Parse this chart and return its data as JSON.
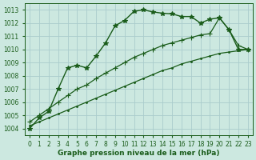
{
  "background_color": "#cce8e0",
  "plot_bg_color": "#cce8e0",
  "grid_color": "#aacccc",
  "line_color": "#1a5c1a",
  "xlabel": "Graphe pression niveau de la mer (hPa)",
  "xlim": [
    -0.5,
    23.5
  ],
  "ylim": [
    1003.5,
    1013.5
  ],
  "yticks": [
    1004,
    1005,
    1006,
    1007,
    1008,
    1009,
    1010,
    1011,
    1012,
    1013
  ],
  "xticks": [
    0,
    1,
    2,
    3,
    4,
    5,
    6,
    7,
    8,
    9,
    10,
    11,
    12,
    13,
    14,
    15,
    16,
    17,
    18,
    19,
    20,
    21,
    22,
    23
  ],
  "series": [
    {
      "x": [
        0,
        1,
        2,
        3,
        4,
        5,
        6,
        7,
        8,
        9,
        10,
        11,
        12,
        13,
        14,
        15,
        16,
        17,
        18,
        19,
        20,
        21,
        22,
        23
      ],
      "y": [
        1004.0,
        1004.8,
        1005.3,
        1007.0,
        1008.6,
        1008.8,
        1008.6,
        1009.5,
        1010.5,
        1011.8,
        1012.2,
        1012.9,
        1013.0,
        1012.85,
        1012.75,
        1012.7,
        1012.5,
        1012.5,
        1012.0,
        1012.3,
        1012.4,
        1011.5,
        1010.0,
        1010.0
      ],
      "marker": "*",
      "linewidth": 1.0
    },
    {
      "x": [
        0,
        1,
        2,
        3,
        4,
        5,
        6,
        7,
        8,
        9,
        10,
        11,
        12,
        13,
        14,
        15,
        16,
        17,
        18,
        19,
        20,
        21,
        22,
        23
      ],
      "y": [
        1004.5,
        1005.0,
        1005.5,
        1006.0,
        1006.5,
        1007.0,
        1007.3,
        1007.8,
        1008.2,
        1008.6,
        1009.0,
        1009.4,
        1009.7,
        1010.0,
        1010.3,
        1010.5,
        1010.7,
        1010.9,
        1011.1,
        1011.2,
        1012.4,
        1011.5,
        1010.3,
        1010.0
      ],
      "marker": "+",
      "linewidth": 0.9
    },
    {
      "x": [
        0,
        1,
        2,
        3,
        4,
        5,
        6,
        7,
        8,
        9,
        10,
        11,
        12,
        13,
        14,
        15,
        16,
        17,
        18,
        19,
        20,
        21,
        22,
        23
      ],
      "y": [
        1004.2,
        1004.5,
        1004.8,
        1005.1,
        1005.4,
        1005.7,
        1006.0,
        1006.3,
        1006.6,
        1006.9,
        1007.2,
        1007.5,
        1007.8,
        1008.1,
        1008.4,
        1008.6,
        1008.9,
        1009.1,
        1009.3,
        1009.5,
        1009.7,
        1009.8,
        1009.9,
        1010.0
      ],
      "marker": ".",
      "linewidth": 0.9
    }
  ],
  "marker_sizes": [
    4.0,
    4.5,
    2.5
  ],
  "xlabel_fontsize": 6.5,
  "tick_fontsize": 5.5
}
